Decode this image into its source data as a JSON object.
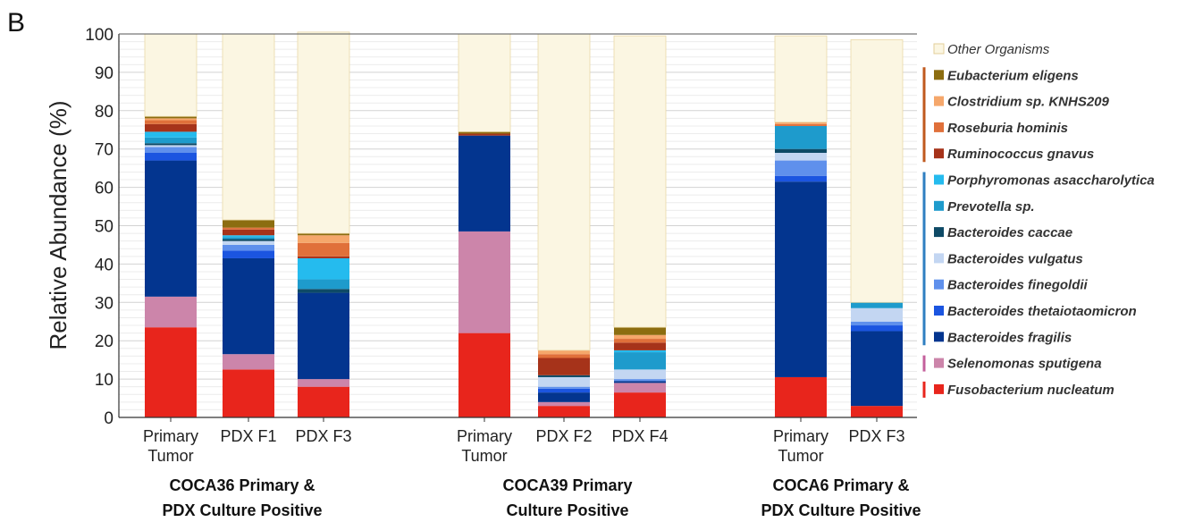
{
  "panel_label": "B",
  "chart_data": {
    "type": "bar",
    "stacked": true,
    "ylabel": "Relative Abundance (%)",
    "xlabel": "",
    "ylim": [
      0,
      100
    ],
    "yticks": [
      0,
      10,
      20,
      30,
      40,
      50,
      60,
      70,
      80,
      90,
      100
    ],
    "grid": true,
    "legend_position": "right",
    "groups": [
      {
        "label_line1": "COCA36 Primary &",
        "label_line2": "PDX Culture Positive",
        "bars": [
          {
            "label_line1": "Primary",
            "label_line2": "Tumor"
          },
          {
            "label_line1": "PDX F1",
            "label_line2": ""
          },
          {
            "label_line1": "PDX F3",
            "label_line2": ""
          }
        ]
      },
      {
        "label_line1": "COCA39 Primary",
        "label_line2": "Culture Positive",
        "bars": [
          {
            "label_line1": "Primary",
            "label_line2": "Tumor"
          },
          {
            "label_line1": "PDX F2",
            "label_line2": ""
          },
          {
            "label_line1": "PDX F4",
            "label_line2": ""
          }
        ]
      },
      {
        "label_line1": "COCA6 Primary &",
        "label_line2": "PDX Culture Positive",
        "bars": [
          {
            "label_line1": "Primary",
            "label_line2": "Tumor"
          },
          {
            "label_line1": "PDX F3",
            "label_line2": ""
          }
        ]
      }
    ],
    "series": [
      {
        "name": "Fusobacterium nucleatum",
        "color": "#e8251c",
        "values": [
          23.5,
          12.5,
          8,
          22,
          3,
          6.5,
          10.5,
          3
        ]
      },
      {
        "name": "Selenomonas sputigena",
        "color": "#cc85aa",
        "values": [
          8,
          4,
          2,
          26.5,
          1,
          2.5,
          0,
          0
        ]
      },
      {
        "name": "Bacteroides fragilis",
        "color": "#03358f",
        "values": [
          35.5,
          25,
          22.5,
          25,
          2.5,
          0.5,
          51,
          19.5
        ]
      },
      {
        "name": "Bacteroides thetaiotaomicron",
        "color": "#1b55e0",
        "values": [
          2,
          2,
          0,
          0,
          1,
          0,
          1.5,
          1.5
        ]
      },
      {
        "name": "Bacteroides finegoldii",
        "color": "#5f90ec",
        "values": [
          1.5,
          1.5,
          0,
          0,
          0.5,
          0.5,
          4,
          1
        ]
      },
      {
        "name": "Bacteroides vulgatus",
        "color": "#c3d6f2",
        "values": [
          0.5,
          1,
          0,
          0,
          2.5,
          2.5,
          2,
          3.5
        ]
      },
      {
        "name": "Bacteroides caccae",
        "color": "#0e4a66",
        "values": [
          0.5,
          0.5,
          1,
          0,
          0.5,
          0,
          1,
          0
        ]
      },
      {
        "name": "Prevotella sp.",
        "color": "#1e9bcc",
        "values": [
          1.5,
          0.5,
          2.5,
          0,
          0,
          4.5,
          6,
          1.5
        ]
      },
      {
        "name": "Porphyromonas asaccharolytica",
        "color": "#25bbee",
        "values": [
          1.5,
          0.5,
          5.5,
          0,
          0,
          0.5,
          0,
          0
        ]
      },
      {
        "name": "Ruminococcus gnavus",
        "color": "#a6331a",
        "values": [
          2,
          1.5,
          0.5,
          0.5,
          4.5,
          2,
          0,
          0
        ]
      },
      {
        "name": "Roseburia hominis",
        "color": "#e0703a",
        "values": [
          1,
          0.5,
          3.5,
          0,
          1,
          1,
          0.5,
          0
        ]
      },
      {
        "name": "Clostridium sp. KNHS209",
        "color": "#f5a76b",
        "values": [
          0.5,
          0,
          2,
          0,
          1,
          1,
          0.5,
          0
        ]
      },
      {
        "name": "Eubacterium eligens",
        "color": "#8c6d10",
        "values": [
          0.5,
          2,
          0.5,
          0.5,
          0,
          2,
          0,
          0
        ]
      },
      {
        "name": "Other Organisms",
        "color": "#fbf6e2",
        "values": [
          21.5,
          48.5,
          52.5,
          25.5,
          82.5,
          76,
          22.5,
          68.5
        ]
      }
    ],
    "legend_bracket_colors": {
      "firmicutes": "#c0591e",
      "bacteroidetes": "#2f7fc1",
      "selenomonas": "#c4609c",
      "fusobacterium": "#e8251c"
    }
  }
}
